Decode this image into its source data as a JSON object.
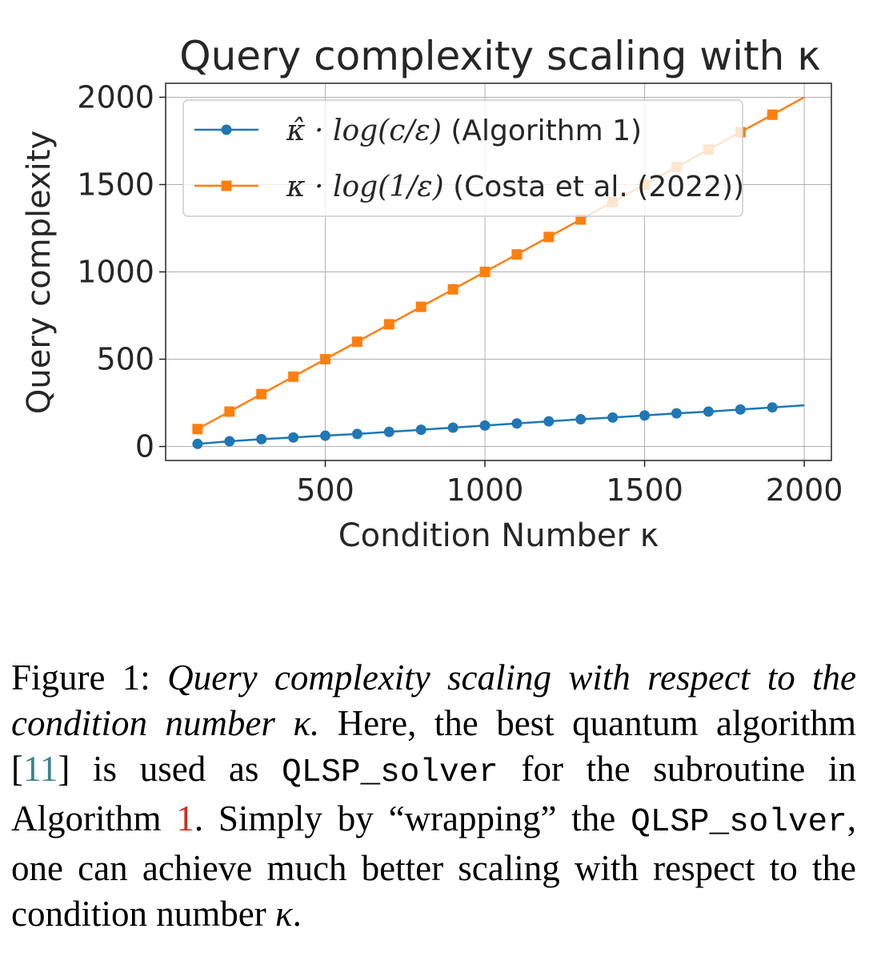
{
  "chart_data": {
    "type": "line",
    "title": "Query complexity scaling with κ",
    "xlabel": "Condition Number κ",
    "ylabel": "Query complexity",
    "xlim": [
      0,
      2085
    ],
    "ylim": [
      -80,
      2080
    ],
    "xticks": [
      500,
      1000,
      1500,
      2000
    ],
    "yticks": [
      0,
      500,
      1000,
      1500,
      2000
    ],
    "grid": true,
    "legend_position": "top-left",
    "series": [
      {
        "name": "κ̂ · log(c/ε) (Algorithm 1)",
        "legend_math": "κ̂ · log(c/ε)",
        "legend_text": "(Algorithm 1)",
        "color": "#1f77b4",
        "marker": "circle",
        "x": [
          100,
          200,
          300,
          400,
          500,
          600,
          700,
          800,
          900,
          1000,
          1100,
          1200,
          1300,
          1400,
          1500,
          1600,
          1700,
          1800,
          1900
        ],
        "y": [
          15,
          30,
          42,
          52,
          62,
          72,
          84,
          96,
          108,
          120,
          132,
          144,
          156,
          166,
          178,
          190,
          200,
          212,
          224
        ],
        "line_end": [
          2000,
          236
        ]
      },
      {
        "name": "κ · log(1/ε) (Costa et al. (2022))",
        "legend_math": "κ · log(1/ε)",
        "legend_text": "(Costa et al. (2022))",
        "color": "#ff7f0e",
        "marker": "square",
        "x": [
          100,
          200,
          300,
          400,
          500,
          600,
          700,
          800,
          900,
          1000,
          1100,
          1200,
          1300,
          1400,
          1500,
          1600,
          1700,
          1800,
          1900
        ],
        "y": [
          100,
          200,
          300,
          400,
          500,
          600,
          700,
          800,
          900,
          1000,
          1100,
          1200,
          1300,
          1400,
          1500,
          1600,
          1700,
          1800,
          1900
        ],
        "line_end": [
          2000,
          2000
        ]
      }
    ]
  },
  "caption": {
    "label": "Figure 1:",
    "emphasis": "Query complexity scaling with respect to the condition number κ.",
    "part1": "Here, the best quantum algorithm [",
    "cite": "11",
    "part2": "] is used as",
    "code1": "QLSP_solver",
    "part3": "for the subroutine in Algorithm",
    "ref": "1",
    "part4": ". Simply by “wrapping” the",
    "code2": "QLSP_solver",
    "part5": ", one can achieve much better scaling with respect to the condition number",
    "kappa": "κ",
    "end": "."
  }
}
